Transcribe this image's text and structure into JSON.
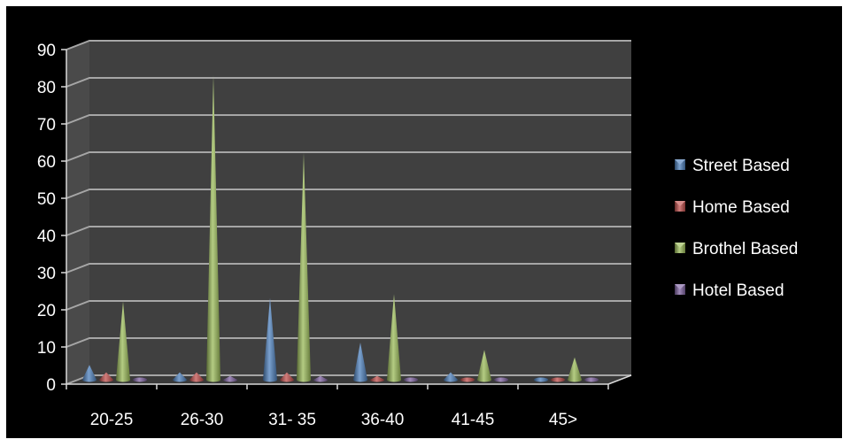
{
  "chart_data": {
    "type": "bar",
    "subtype": "3d-cone",
    "title": "",
    "xlabel": "",
    "ylabel": "",
    "categories": [
      "20-25",
      "26-30",
      "31- 35",
      "36-40",
      "41-45",
      "45>"
    ],
    "ylim": [
      0,
      90
    ],
    "yticks": [
      0,
      10,
      20,
      30,
      40,
      50,
      60,
      70,
      80,
      90
    ],
    "grid": true,
    "legend_position": "right",
    "series": [
      {
        "name": "Street Based",
        "color": "#4F81BD",
        "values": [
          4,
          2,
          22,
          10,
          2,
          0
        ]
      },
      {
        "name": "Home Based",
        "color": "#C0504D",
        "values": [
          2,
          2,
          2,
          1,
          0,
          0
        ]
      },
      {
        "name": "Brothel Based",
        "color": "#9BBB59",
        "values": [
          21,
          82,
          61,
          23,
          8,
          6
        ]
      },
      {
        "name": "Hotel Based",
        "color": "#8064A2",
        "values": [
          0,
          1,
          1,
          0,
          0,
          0
        ]
      }
    ],
    "background": "#000000",
    "plot_wall_color": "#404040",
    "gridline_color": "#a6a6a6",
    "text_color": "#ffffff"
  }
}
